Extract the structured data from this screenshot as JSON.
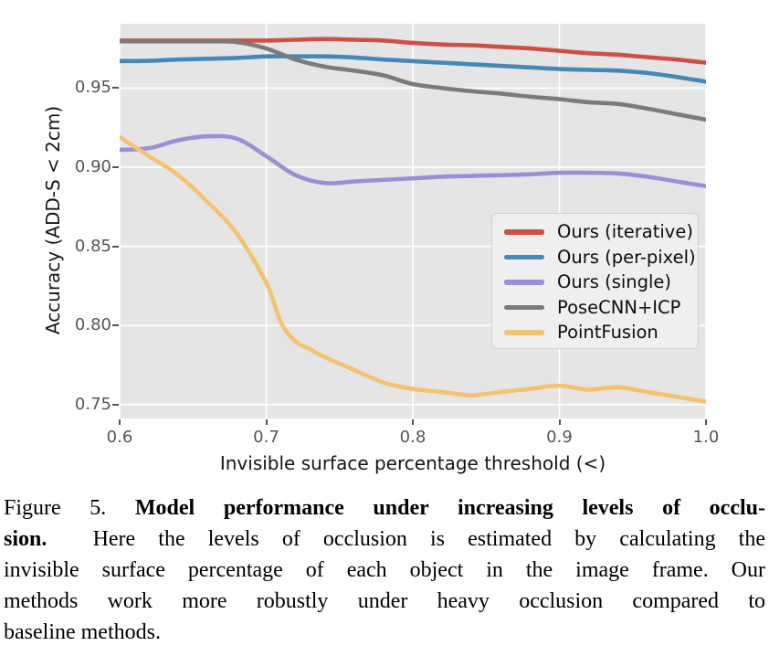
{
  "figure": {
    "caption": {
      "lines": [
        {
          "normal": "Figure 5. ",
          "bold": "Model performance under increasing levels of occlu-"
        },
        {
          "bold": "sion.",
          "normal": "  Here the levels of occlusion is estimated by calculating the"
        },
        {
          "normal": "invisible surface percentage of each object in the image frame. Our"
        },
        {
          "normal": "methods work more robustly under heavy occlusion compared to"
        },
        {
          "normal": "baseline methods."
        }
      ]
    }
  },
  "chart_data": {
    "type": "line",
    "title": "",
    "xlabel": "Invisible surface percentage threshold (<)",
    "ylabel": "Accuracy (ADD-S < 2cm)",
    "xlim": [
      0.6,
      1.0
    ],
    "ylim": [
      0.7413,
      0.9906
    ],
    "grid": true,
    "background": "#e5e5e5",
    "grid_color": "#ffffff",
    "legend_position": "center-right",
    "x_ticks": [
      {
        "value": 0.6,
        "label": "0.6"
      },
      {
        "value": 0.7,
        "label": "0.7"
      },
      {
        "value": 0.8,
        "label": "0.8"
      },
      {
        "value": 0.9,
        "label": "0.9"
      },
      {
        "value": 1.0,
        "label": "1.0"
      }
    ],
    "y_ticks": [
      {
        "value": 0.75,
        "label": "0.75"
      },
      {
        "value": 0.8,
        "label": "0.80"
      },
      {
        "value": 0.85,
        "label": "0.85"
      },
      {
        "value": 0.9,
        "label": "0.90"
      },
      {
        "value": 0.95,
        "label": "0.95"
      }
    ],
    "series": [
      {
        "name": "Ours (iterative)",
        "color": "#cc5044",
        "x": [
          0.6,
          0.62,
          0.64,
          0.66,
          0.68,
          0.7,
          0.72,
          0.74,
          0.76,
          0.78,
          0.8,
          0.82,
          0.84,
          0.86,
          0.88,
          0.9,
          0.92,
          0.94,
          0.96,
          0.98,
          1.0
        ],
        "y": [
          0.98,
          0.98,
          0.98,
          0.98,
          0.98,
          0.98,
          0.9805,
          0.981,
          0.9805,
          0.98,
          0.9785,
          0.9775,
          0.977,
          0.976,
          0.975,
          0.9735,
          0.972,
          0.971,
          0.9695,
          0.968,
          0.966
        ]
      },
      {
        "name": "Ours (per-pixel)",
        "color": "#4687b3",
        "x": [
          0.6,
          0.62,
          0.64,
          0.66,
          0.68,
          0.7,
          0.72,
          0.74,
          0.76,
          0.78,
          0.8,
          0.82,
          0.84,
          0.86,
          0.88,
          0.9,
          0.92,
          0.94,
          0.96,
          0.98,
          1.0
        ],
        "y": [
          0.967,
          0.9672,
          0.968,
          0.9685,
          0.969,
          0.97,
          0.97,
          0.97,
          0.9693,
          0.968,
          0.967,
          0.966,
          0.965,
          0.964,
          0.963,
          0.962,
          0.9615,
          0.961,
          0.9595,
          0.957,
          0.954
        ]
      },
      {
        "name": "Ours (single)",
        "color": "#9a8fd4",
        "x": [
          0.6,
          0.62,
          0.64,
          0.66,
          0.68,
          0.7,
          0.72,
          0.74,
          0.76,
          0.78,
          0.8,
          0.82,
          0.84,
          0.86,
          0.88,
          0.9,
          0.92,
          0.94,
          0.96,
          0.98,
          1.0
        ],
        "y": [
          0.911,
          0.912,
          0.917,
          0.9195,
          0.918,
          0.907,
          0.895,
          0.89,
          0.891,
          0.892,
          0.893,
          0.894,
          0.8945,
          0.895,
          0.8955,
          0.8965,
          0.8965,
          0.896,
          0.894,
          0.891,
          0.888
        ]
      },
      {
        "name": "PoseCNN+ICP",
        "color": "#7b7b7b",
        "x": [
          0.6,
          0.62,
          0.64,
          0.66,
          0.68,
          0.7,
          0.72,
          0.74,
          0.76,
          0.78,
          0.8,
          0.82,
          0.84,
          0.86,
          0.88,
          0.9,
          0.92,
          0.94,
          0.96,
          0.98,
          1.0
        ],
        "y": [
          0.9795,
          0.9795,
          0.9795,
          0.9795,
          0.979,
          0.975,
          0.968,
          0.9635,
          0.961,
          0.958,
          0.9525,
          0.95,
          0.948,
          0.9465,
          0.9445,
          0.943,
          0.941,
          0.94,
          0.937,
          0.9335,
          0.93
        ]
      },
      {
        "name": "PointFusion",
        "color": "#f3c36f",
        "x": [
          0.6,
          0.62,
          0.64,
          0.66,
          0.68,
          0.7,
          0.71,
          0.72,
          0.73,
          0.74,
          0.76,
          0.78,
          0.8,
          0.82,
          0.84,
          0.86,
          0.88,
          0.9,
          0.92,
          0.94,
          0.96,
          0.98,
          1.0
        ],
        "y": [
          0.919,
          0.907,
          0.895,
          0.878,
          0.858,
          0.827,
          0.802,
          0.79,
          0.785,
          0.78,
          0.772,
          0.764,
          0.76,
          0.758,
          0.756,
          0.758,
          0.76,
          0.762,
          0.7595,
          0.761,
          0.758,
          0.755,
          0.752
        ]
      }
    ]
  }
}
